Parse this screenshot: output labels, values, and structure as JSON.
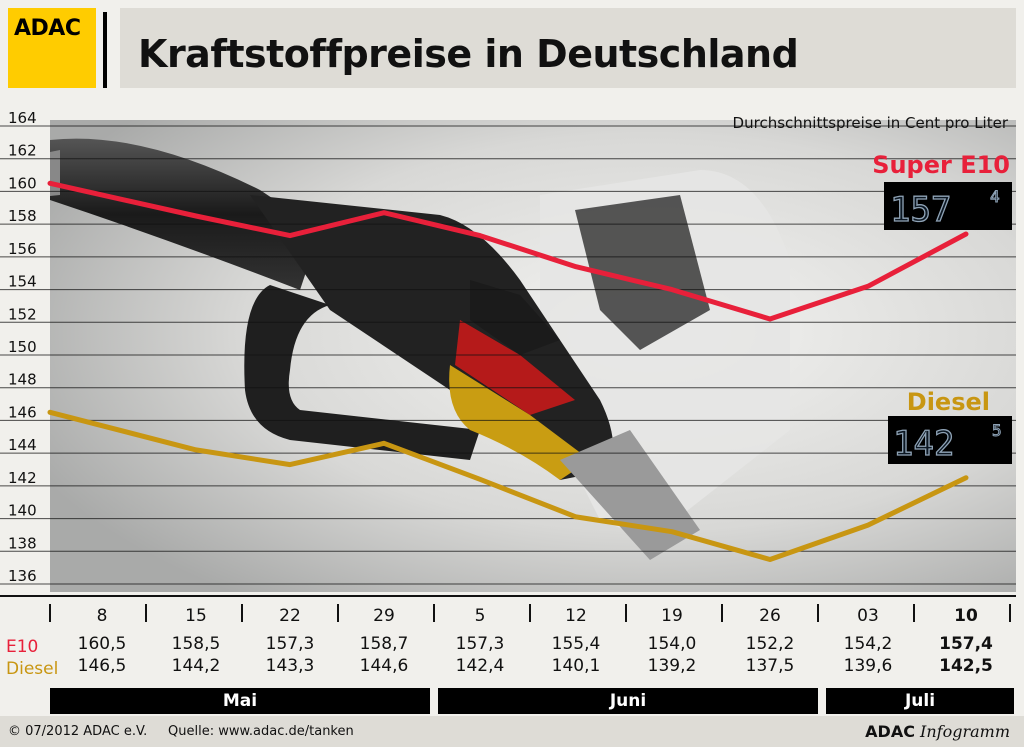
{
  "header": {
    "logo": "ADAC",
    "title": "Kraftstoffpreise in Deutschland"
  },
  "chart_data": {
    "type": "line",
    "unit_label": "Durchschnittspreise in Cent pro Liter",
    "ylim": [
      136,
      164
    ],
    "yticks": [
      "164",
      "162",
      "160",
      "158",
      "156",
      "154",
      "152",
      "150",
      "148",
      "146",
      "144",
      "142",
      "140",
      "138",
      "136"
    ],
    "categories": [
      "8",
      "15",
      "22",
      "29",
      "5",
      "12",
      "19",
      "26",
      "03",
      "10"
    ],
    "months": [
      {
        "label": "Mai",
        "span": [
          0,
          3
        ]
      },
      {
        "label": "Juni",
        "span": [
          4,
          7
        ]
      },
      {
        "label": "Juli",
        "span": [
          8,
          9
        ]
      }
    ],
    "series": [
      {
        "name": "Super E10",
        "row_label": "E10",
        "color": "#e8203a",
        "values": [
          160.5,
          158.5,
          157.3,
          158.7,
          157.3,
          155.4,
          154.0,
          152.2,
          154.2,
          157.4
        ],
        "labels": [
          "160,5",
          "158,5",
          "157,3",
          "158,7",
          "157,3",
          "155,4",
          "154,0",
          "152,2",
          "154,2",
          "157,4"
        ],
        "display_main": "157",
        "display_sup": "4"
      },
      {
        "name": "Diesel",
        "row_label": "Diesel",
        "color": "#c89612",
        "values": [
          146.5,
          144.2,
          143.3,
          144.6,
          142.4,
          140.1,
          139.2,
          137.5,
          139.6,
          142.5
        ],
        "labels": [
          "146,5",
          "144,2",
          "143,3",
          "144,6",
          "142,4",
          "140,1",
          "139,2",
          "137,5",
          "139,6",
          "142,5"
        ],
        "display_main": "142",
        "display_sup": "5"
      }
    ],
    "grid": true,
    "legend": "right, next to series ends"
  },
  "footer": {
    "copyright": "© 07/2012 ADAC e.V.",
    "source": "Quelle: www.adac.de/tanken",
    "brand_bold": "ADAC",
    "brand_italic": "Infogramm"
  },
  "colors": {
    "accent_yellow": "#ffcc00",
    "e10_red": "#e8203a",
    "diesel_gold": "#c89612"
  }
}
